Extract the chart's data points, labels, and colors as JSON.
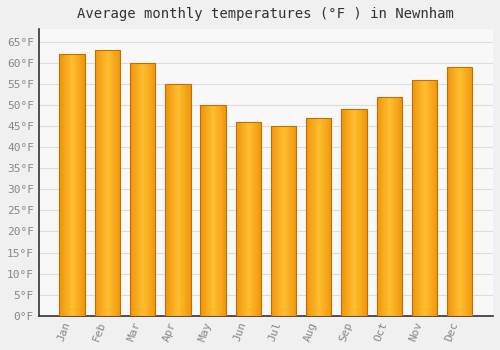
{
  "title": "Average monthly temperatures (°F ) in Newnham",
  "months": [
    "Jan",
    "Feb",
    "Mar",
    "Apr",
    "May",
    "Jun",
    "Jul",
    "Aug",
    "Sep",
    "Oct",
    "Nov",
    "Dec"
  ],
  "values": [
    62,
    63,
    60,
    55,
    50,
    46,
    45,
    47,
    49,
    52,
    56,
    59
  ],
  "bar_color_center": "#FFBE30",
  "bar_color_edge": "#F0950A",
  "bar_outline_color": "#C07000",
  "ylim": [
    0,
    68
  ],
  "ytick_step": 5,
  "background_color": "#f0f0f0",
  "plot_bg_color": "#f8f8f8",
  "grid_color": "#dddddd",
  "title_fontsize": 10,
  "tick_fontsize": 8,
  "font_family": "monospace",
  "tick_color": "#888888",
  "spine_color": "#333333"
}
